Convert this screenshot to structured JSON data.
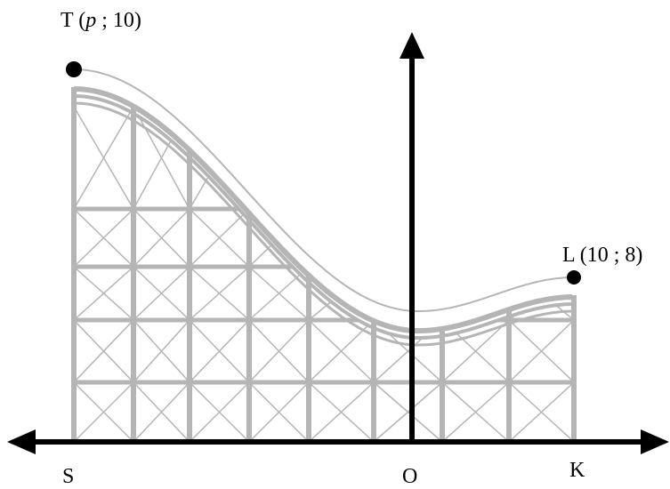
{
  "points": [
    {
      "label_parts": [
        "T (",
        "p",
        " ; 10)"
      ]
    },
    {
      "label": "L (10 ; 8)"
    }
  ],
  "axis_labels": [
    "S",
    "O",
    "K"
  ]
}
